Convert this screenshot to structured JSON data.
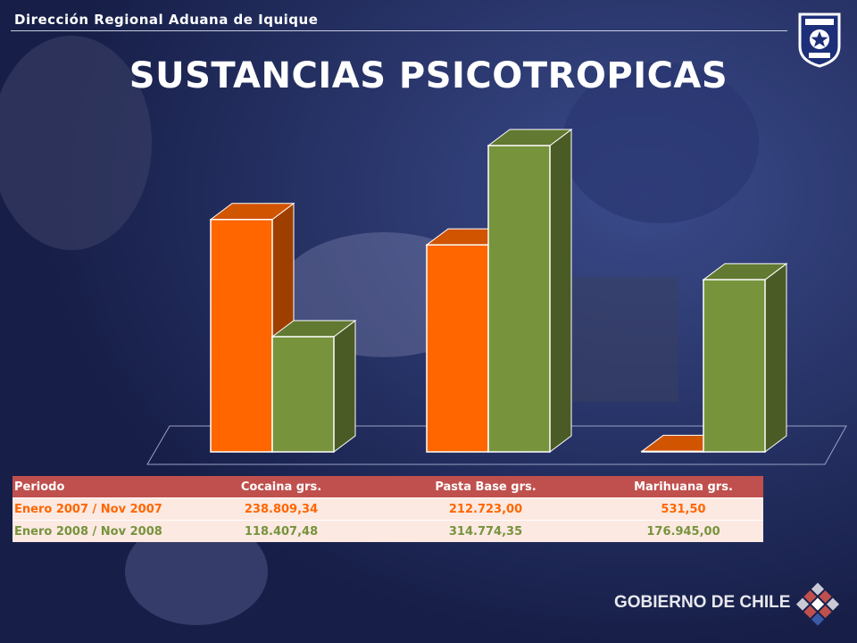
{
  "header": {
    "region_label": "Dirección Regional Aduana de Iquique"
  },
  "slide": {
    "title": "SUSTANCIAS PSICOTROPICAS"
  },
  "logos": {
    "badge": "aduanas-chile-badge",
    "government": "GOBIERNO DE CHILE"
  },
  "colors": {
    "background": "#1f2a5a",
    "series_2007": "#ff6600",
    "series_2008": "#77933c",
    "table_header": "#c0504d"
  },
  "chart_data": {
    "type": "bar",
    "categories": [
      "Cocaina grs.",
      "Pasta Base grs.",
      "Marihuana grs."
    ],
    "series": [
      {
        "name": "Enero 2007 / Nov 2007",
        "values": [
          238809.34,
          212723.0,
          531.5
        ],
        "color": "#ff6600"
      },
      {
        "name": "Enero 2008 / Nov 2008",
        "values": [
          118407.48,
          314774.35,
          176945.0
        ],
        "color": "#77933c"
      }
    ],
    "ylim": [
      0,
      314774.35
    ],
    "grid": false,
    "style": "3d-columns"
  },
  "table": {
    "headers": [
      "Periodo",
      "Cocaina grs.",
      "Pasta Base grs.",
      "Marihuana grs."
    ],
    "rows": [
      [
        "Enero 2007 / Nov 2007",
        "238.809,34",
        "212.723,00",
        "531,50"
      ],
      [
        "Enero 2008 / Nov 2008",
        "118.407,48",
        "314.774,35",
        "176.945,00"
      ]
    ]
  }
}
